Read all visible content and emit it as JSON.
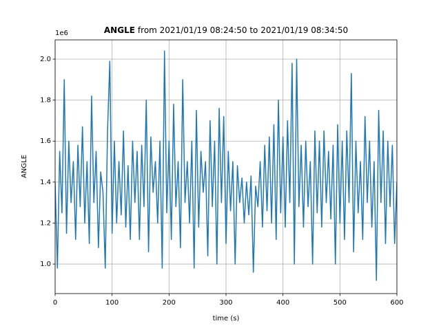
{
  "chart_data": {
    "type": "line",
    "title_var": "ANGLE",
    "title": "from 2021/01/19 08:24:50 to 2021/01/19 08:34:50",
    "x_label": "time (s)",
    "y_label": "ANGLE",
    "y_offset_label": "1e6",
    "color": "#1f77b4",
    "grid": true,
    "xlim": [
      0,
      600
    ],
    "xticks": [
      0,
      100,
      200,
      300,
      400,
      500,
      600
    ],
    "ylim": [
      856000,
      2094000
    ],
    "yticks": [
      {
        "value": 1000000,
        "label": "1.0"
      },
      {
        "value": 1200000,
        "label": "1.2"
      },
      {
        "value": 1400000,
        "label": "1.4"
      },
      {
        "value": 1600000,
        "label": "1.6"
      },
      {
        "value": 1800000,
        "label": "1.8"
      },
      {
        "value": 2000000,
        "label": "2.0"
      }
    ],
    "x": [
      0,
      4,
      8,
      12,
      16,
      20,
      24,
      28,
      32,
      36,
      40,
      44,
      48,
      52,
      56,
      60,
      64,
      68,
      72,
      76,
      80,
      84,
      88,
      92,
      96,
      100,
      104,
      108,
      112,
      116,
      120,
      124,
      128,
      132,
      136,
      140,
      144,
      148,
      152,
      156,
      160,
      164,
      168,
      172,
      176,
      180,
      184,
      188,
      192,
      196,
      200,
      204,
      208,
      212,
      216,
      220,
      224,
      228,
      232,
      236,
      240,
      244,
      248,
      252,
      256,
      260,
      264,
      268,
      272,
      276,
      280,
      284,
      288,
      292,
      296,
      300,
      304,
      308,
      312,
      316,
      320,
      324,
      328,
      332,
      336,
      340,
      344,
      348,
      352,
      356,
      360,
      364,
      368,
      372,
      376,
      380,
      384,
      388,
      392,
      396,
      400,
      404,
      408,
      412,
      416,
      420,
      424,
      428,
      432,
      436,
      440,
      444,
      448,
      452,
      456,
      460,
      464,
      468,
      472,
      476,
      480,
      484,
      488,
      492,
      496,
      500,
      504,
      508,
      512,
      516,
      520,
      524,
      528,
      532,
      536,
      540,
      544,
      548,
      552,
      556,
      560,
      564,
      568,
      572,
      576,
      580,
      584,
      588,
      592,
      596,
      600
    ],
    "values": [
      1400000,
      980000,
      1550000,
      1250000,
      1900000,
      1150000,
      1600000,
      1300000,
      1500000,
      1120000,
      1580000,
      1280000,
      1670000,
      1200000,
      1500000,
      1100000,
      1820000,
      1300000,
      1550000,
      1080000,
      1450000,
      1350000,
      980000,
      1650000,
      1990000,
      1150000,
      1600000,
      1200000,
      1500000,
      1240000,
      1650000,
      1180000,
      1480000,
      1120000,
      1600000,
      1300000,
      1550000,
      1120000,
      1580000,
      1280000,
      1800000,
      1060000,
      1620000,
      1350000,
      1500000,
      1200000,
      1600000,
      980000,
      2040000,
      1250000,
      1600000,
      1120000,
      1780000,
      1280000,
      1500000,
      1080000,
      1900000,
      1300000,
      1500000,
      1200000,
      1600000,
      980000,
      1750000,
      1180000,
      1550000,
      1350000,
      1500000,
      1040000,
      1700000,
      1280000,
      1600000,
      1000000,
      1760000,
      1300000,
      1720000,
      1100000,
      1550000,
      1260000,
      1500000,
      1000000,
      1480000,
      1300000,
      1420000,
      1200000,
      1400000,
      1240000,
      1430000,
      960000,
      1380000,
      1280000,
      1500000,
      1180000,
      1580000,
      1260000,
      1620000,
      1200000,
      1680000,
      1120000,
      1800000,
      1250000,
      1620000,
      1180000,
      1700000,
      1300000,
      1980000,
      1000000,
      2000000,
      1280000,
      1580000,
      1180000,
      1600000,
      1280000,
      1500000,
      1000000,
      1650000,
      1250000,
      1600000,
      1180000,
      1650000,
      1300000,
      1550000,
      1220000,
      1580000,
      1000000,
      1680000,
      1200000,
      1600000,
      1120000,
      1650000,
      1300000,
      1930000,
      1060000,
      1600000,
      1250000,
      1500000,
      1120000,
      1720000,
      1300000,
      1600000,
      1180000,
      1500000,
      920000,
      1750000,
      1300000,
      1650000,
      1100000,
      1600000,
      1280000,
      1580000,
      1100000,
      1400000
    ]
  }
}
